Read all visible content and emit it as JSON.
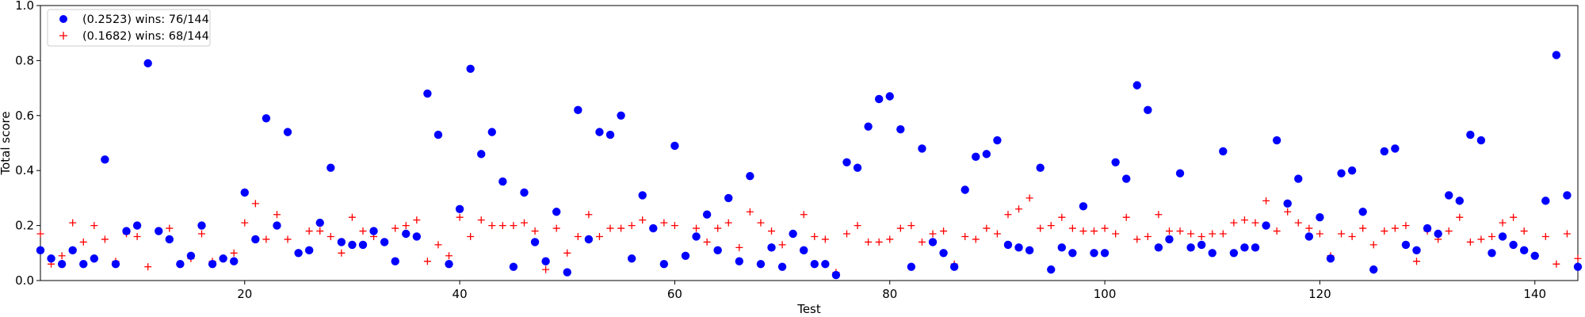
{
  "chart_data": {
    "type": "scatter",
    "title": "",
    "xlabel": "Test",
    "ylabel": "Total score",
    "xlim": [
      1,
      144
    ],
    "ylim": [
      0,
      1.0
    ],
    "x_ticks": [
      20,
      40,
      60,
      80,
      100,
      120,
      140
    ],
    "y_ticks": [
      "0.0",
      "0.2",
      "0.4",
      "0.6",
      "0.8",
      "1.0"
    ],
    "grid": false,
    "legend_position": "top-left",
    "series": [
      {
        "name": "(0.2523) wins: 76/144",
        "marker": "circle",
        "color": "#0000ff",
        "values": [
          0.11,
          0.08,
          0.06,
          0.11,
          0.06,
          0.08,
          0.44,
          0.06,
          0.18,
          0.2,
          0.79,
          0.18,
          0.15,
          0.06,
          0.09,
          0.2,
          0.06,
          0.08,
          0.07,
          0.32,
          0.15,
          0.59,
          0.2,
          0.54,
          0.1,
          0.11,
          0.21,
          0.41,
          0.14,
          0.13,
          0.13,
          0.18,
          0.14,
          0.07,
          0.17,
          0.16,
          0.68,
          0.53,
          0.06,
          0.26,
          0.77,
          0.46,
          0.54,
          0.36,
          0.05,
          0.32,
          0.14,
          0.07,
          0.25,
          0.03,
          0.62,
          0.15,
          0.54,
          0.53,
          0.6,
          0.08,
          0.31,
          0.19,
          0.06,
          0.49,
          0.09,
          0.16,
          0.24,
          0.11,
          0.3,
          0.07,
          0.38,
          0.06,
          0.12,
          0.05,
          0.17,
          0.11,
          0.06,
          0.06,
          0.02,
          0.43,
          0.41,
          0.56,
          0.66,
          0.67,
          0.55,
          0.05,
          0.48,
          0.14,
          0.1,
          0.05,
          0.33,
          0.45,
          0.46,
          0.51,
          0.13,
          0.12,
          0.11,
          0.41,
          0.04,
          0.12,
          0.1,
          0.27,
          0.1,
          0.1,
          0.43,
          0.37,
          0.71,
          0.62,
          0.12,
          0.15,
          0.39,
          0.12,
          0.13,
          0.1,
          0.47,
          0.1,
          0.12,
          0.12,
          0.2,
          0.51,
          0.28,
          0.37,
          0.16,
          0.23,
          0.08,
          0.39,
          0.4,
          0.25,
          0.04,
          0.47,
          0.48,
          0.13,
          0.11,
          0.19,
          0.17,
          0.31,
          0.29,
          0.53,
          0.51,
          0.1,
          0.16,
          0.13,
          0.11,
          0.09,
          0.29,
          0.82,
          0.31,
          0.05
        ]
      },
      {
        "name": "(0.1682) wins: 68/144",
        "marker": "plus",
        "color": "#ff0000",
        "values": [
          0.17,
          0.06,
          0.09,
          0.21,
          0.14,
          0.2,
          0.15,
          0.07,
          0.17,
          0.16,
          0.05,
          0.18,
          0.19,
          0.06,
          0.08,
          0.17,
          0.07,
          0.08,
          0.1,
          0.21,
          0.28,
          0.15,
          0.24,
          0.15,
          0.1,
          0.18,
          0.18,
          0.16,
          0.1,
          0.23,
          0.18,
          0.16,
          0.14,
          0.19,
          0.2,
          0.22,
          0.07,
          0.13,
          0.09,
          0.23,
          0.16,
          0.22,
          0.2,
          0.2,
          0.2,
          0.21,
          0.18,
          0.04,
          0.19,
          0.1,
          0.16,
          0.24,
          0.16,
          0.19,
          0.19,
          0.2,
          0.22,
          0.19,
          0.21,
          0.2,
          0.09,
          0.19,
          0.14,
          0.19,
          0.21,
          0.12,
          0.25,
          0.21,
          0.18,
          0.13,
          0.17,
          0.24,
          0.16,
          0.15,
          0.03,
          0.17,
          0.2,
          0.14,
          0.14,
          0.15,
          0.19,
          0.2,
          0.14,
          0.17,
          0.18,
          0.06,
          0.16,
          0.15,
          0.19,
          0.17,
          0.24,
          0.26,
          0.3,
          0.19,
          0.2,
          0.23,
          0.19,
          0.18,
          0.18,
          0.19,
          0.17,
          0.23,
          0.15,
          0.16,
          0.24,
          0.18,
          0.18,
          0.17,
          0.16,
          0.17,
          0.17,
          0.21,
          0.22,
          0.21,
          0.29,
          0.18,
          0.25,
          0.21,
          0.19,
          0.17,
          0.09,
          0.17,
          0.16,
          0.19,
          0.13,
          0.18,
          0.19,
          0.2,
          0.07,
          0.18,
          0.15,
          0.18,
          0.23,
          0.14,
          0.15,
          0.16,
          0.21,
          0.23,
          0.18,
          0.09,
          0.16,
          0.06,
          0.17,
          0.08
        ]
      }
    ]
  }
}
